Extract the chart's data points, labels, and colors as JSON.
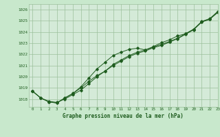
{
  "title": "Graphe pression niveau de la mer (hPa)",
  "background_color": "#c8e8cc",
  "plot_background": "#d4ead8",
  "grid_color": "#9bbf9b",
  "line_color": "#1e5c1e",
  "xlim": [
    -0.5,
    23
  ],
  "ylim": [
    1017.3,
    1026.5
  ],
  "yticks": [
    1018,
    1019,
    1020,
    1021,
    1022,
    1023,
    1024,
    1025,
    1026
  ],
  "xticks": [
    0,
    1,
    2,
    3,
    4,
    5,
    6,
    7,
    8,
    9,
    10,
    11,
    12,
    13,
    14,
    15,
    16,
    17,
    18,
    19,
    20,
    21,
    22,
    23
  ],
  "series1": [
    1018.7,
    1018.1,
    1017.75,
    1017.65,
    1018.1,
    1018.5,
    1019.0,
    1019.6,
    1020.1,
    1020.5,
    1021.0,
    1021.4,
    1021.8,
    1022.1,
    1022.3,
    1022.6,
    1022.8,
    1023.1,
    1023.4,
    1023.8,
    1024.2,
    1024.9,
    1025.15,
    1025.8
  ],
  "series2": [
    1018.7,
    1018.1,
    1017.8,
    1017.7,
    1018.0,
    1018.4,
    1018.8,
    1019.4,
    1020.0,
    1020.5,
    1021.1,
    1021.5,
    1021.9,
    1022.2,
    1022.4,
    1022.65,
    1022.9,
    1023.15,
    1023.45,
    1023.85,
    1024.25,
    1024.95,
    1025.2,
    1025.85
  ],
  "series3": [
    1018.7,
    1018.1,
    1017.75,
    1017.65,
    1018.1,
    1018.5,
    1019.1,
    1019.9,
    1020.7,
    1021.3,
    1021.9,
    1022.2,
    1022.45,
    1022.55,
    1022.4,
    1022.7,
    1023.05,
    1023.3,
    1023.65,
    1023.85,
    1024.25,
    1024.9,
    1025.15,
    1025.75
  ]
}
